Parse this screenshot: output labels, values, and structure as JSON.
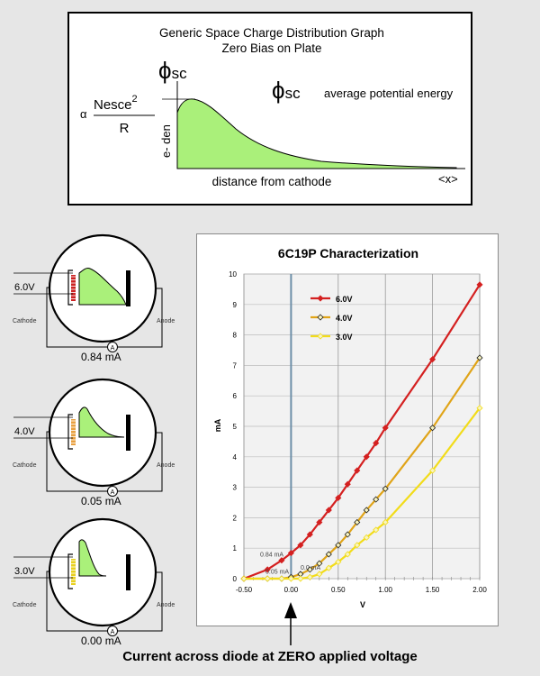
{
  "top_graph": {
    "title_line1": "Generic Space Charge Distribution Graph",
    "title_line2": "Zero Bias on Plate",
    "phi_symbol": "ϕ",
    "phi_sub": "sc",
    "phi_legend_symbol": "ϕ",
    "phi_legend_sub": "sc",
    "phi_legend_text": "average potential energy",
    "alpha": "α",
    "fraction_numerator": "Nesce",
    "fraction_exponent": "2",
    "fraction_denominator": "R",
    "ylabel": "e- den",
    "xlabel": "distance from cathode",
    "x_marker": "<x>"
  },
  "diodes": [
    {
      "voltage": "6.0V",
      "current": "0.84 mA",
      "cathode_label": "Cathode",
      "anode_label": "Anode",
      "meter": "A",
      "filament_color": "#cc2222"
    },
    {
      "voltage": "4.0V",
      "current": "0.05 mA",
      "cathode_label": "Cathode",
      "anode_label": "Anode",
      "meter": "A",
      "filament_color": "#e8a040"
    },
    {
      "voltage": "3.0V",
      "current": "0.00 mA",
      "cathode_label": "Cathode",
      "anode_label": "Anode",
      "meter": "A",
      "filament_color": "#e8d020"
    }
  ],
  "chart_data": {
    "type": "line",
    "title": "6C19P Characterization",
    "xlabel": "V",
    "ylabel": "mA",
    "xlim": [
      -0.5,
      2.0
    ],
    "ylim": [
      0,
      10
    ],
    "x_ticks": [
      "-0.50",
      "0.00",
      "0.50",
      "1.00",
      "1.50",
      "2.00"
    ],
    "y_ticks": [
      "0",
      "1",
      "2",
      "3",
      "4",
      "5",
      "6",
      "7",
      "8",
      "9",
      "10"
    ],
    "grid": true,
    "legend": "top-left",
    "series": [
      {
        "name": "6.0V",
        "color": "#d42020",
        "marker": "diamond",
        "x": [
          -0.5,
          -0.25,
          -0.1,
          0.0,
          0.1,
          0.2,
          0.3,
          0.4,
          0.5,
          0.6,
          0.7,
          0.8,
          0.9,
          1.0,
          1.5,
          2.0
        ],
        "y": [
          0.0,
          0.3,
          0.6,
          0.84,
          1.1,
          1.45,
          1.85,
          2.25,
          2.65,
          3.1,
          3.55,
          4.0,
          4.45,
          4.95,
          7.2,
          9.65
        ]
      },
      {
        "name": "4.0V",
        "color": "#e0a418",
        "marker": "diamond",
        "x": [
          -0.5,
          -0.25,
          -0.1,
          0.0,
          0.1,
          0.2,
          0.3,
          0.4,
          0.5,
          0.6,
          0.7,
          0.8,
          0.9,
          1.0,
          1.5,
          2.0
        ],
        "y": [
          0.0,
          0.0,
          0.0,
          0.05,
          0.15,
          0.3,
          0.5,
          0.8,
          1.1,
          1.45,
          1.85,
          2.25,
          2.6,
          2.95,
          4.95,
          7.25
        ]
      },
      {
        "name": "3.0V",
        "color": "#f2dc1a",
        "marker": "diamond",
        "x": [
          -0.5,
          -0.25,
          -0.1,
          0.0,
          0.1,
          0.2,
          0.3,
          0.4,
          0.5,
          0.6,
          0.7,
          0.8,
          0.9,
          1.0,
          1.5,
          2.0
        ],
        "y": [
          0.0,
          0.0,
          0.0,
          0.0,
          0.0,
          0.05,
          0.15,
          0.35,
          0.55,
          0.8,
          1.1,
          1.35,
          1.6,
          1.85,
          3.55,
          5.6
        ]
      }
    ],
    "annotations": [
      "0.84 mA",
      "0.05 mA",
      "0.0 mA"
    ]
  },
  "bottom_caption": "Current across diode at ZERO applied voltage"
}
